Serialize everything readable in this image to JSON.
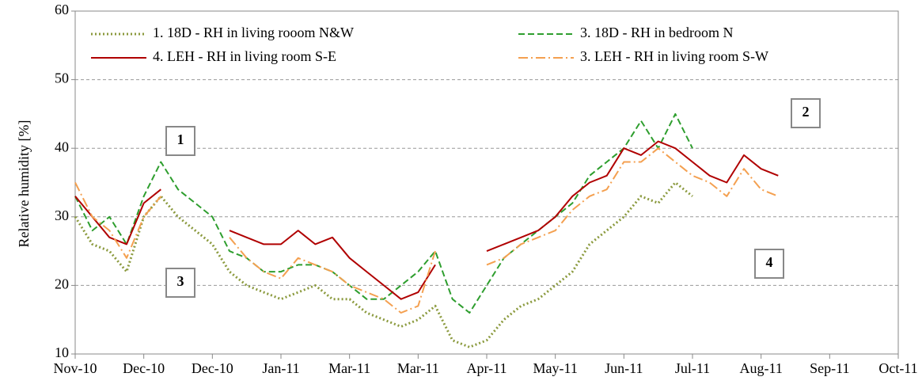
{
  "chart_data": {
    "type": "line",
    "ylabel": "Relative humidity [%]",
    "x": [
      0,
      0.25,
      0.5,
      0.75,
      1,
      1.25,
      1.5,
      1.75,
      2,
      2.25,
      2.5,
      2.75,
      3,
      3.25,
      3.5,
      3.75,
      4,
      4.25,
      4.5,
      4.75,
      5,
      5.25,
      5.5,
      5.75,
      6,
      6.25,
      6.5,
      6.75,
      7,
      7.25,
      7.5,
      7.75,
      8,
      8.25,
      8.5,
      8.75,
      9,
      9.25,
      9.5,
      9.75,
      10,
      10.25
    ],
    "xlim": [
      0,
      12
    ],
    "xticks": [
      {
        "value": 0,
        "label": "Nov-10"
      },
      {
        "value": 1,
        "label": "Dec-10"
      },
      {
        "value": 2,
        "label": "Dec-10"
      },
      {
        "value": 3,
        "label": "Jan-11"
      },
      {
        "value": 4,
        "label": "Mar-11"
      },
      {
        "value": 5,
        "label": "Mar-11"
      },
      {
        "value": 6,
        "label": "Apr-11"
      },
      {
        "value": 7,
        "label": "May-11"
      },
      {
        "value": 8,
        "label": "Jun-11"
      },
      {
        "value": 9,
        "label": "Jul-11"
      },
      {
        "value": 10,
        "label": "Aug-11"
      },
      {
        "value": 11,
        "label": "Sep-11"
      },
      {
        "value": 12,
        "label": "Oct-11"
      }
    ],
    "ylim": [
      10,
      60
    ],
    "yticks": [
      10,
      20,
      30,
      40,
      50,
      60
    ],
    "grid": true,
    "series": [
      {
        "name": "1. 18D - RH in living rooom N&W",
        "color": "#8b9a3e",
        "style": "dotted",
        "values": [
          30,
          26,
          25,
          22,
          30,
          33,
          30,
          28,
          26,
          22,
          20,
          19,
          18,
          19,
          20,
          18,
          18,
          16,
          15,
          14,
          15,
          17,
          12,
          11,
          12,
          15,
          17,
          18,
          20,
          22,
          26,
          28,
          30,
          33,
          32,
          35,
          33,
          null,
          null,
          null,
          null,
          null
        ]
      },
      {
        "name": "3. 18D - RH in bedroom N",
        "color": "#2e9e2e",
        "style": "dashed",
        "values": [
          33,
          28,
          30,
          26,
          33,
          38,
          34,
          32,
          30,
          25,
          24,
          22,
          22,
          23,
          23,
          22,
          20,
          18,
          18,
          20,
          22,
          25,
          18,
          16,
          20,
          24,
          26,
          28,
          30,
          32,
          36,
          38,
          40,
          44,
          40,
          45,
          40,
          null,
          null,
          null,
          null,
          null
        ]
      },
      {
        "name": "4. LEH - RH in living room S-E",
        "color": "#b00000",
        "style": "solid",
        "values": [
          33,
          30,
          27,
          26,
          32,
          34,
          null,
          null,
          null,
          28,
          27,
          26,
          26,
          28,
          26,
          27,
          24,
          22,
          20,
          18,
          19,
          23,
          null,
          null,
          25,
          26,
          27,
          28,
          30,
          33,
          35,
          36,
          40,
          39,
          41,
          40,
          38,
          36,
          35,
          39,
          37,
          36
        ]
      },
      {
        "name": "3. LEH - RH in living room S-W",
        "color": "#f4a050",
        "style": "dashdot",
        "values": [
          35,
          30,
          28,
          24,
          30,
          33,
          null,
          null,
          null,
          27,
          24,
          22,
          21,
          24,
          23,
          22,
          20,
          19,
          18,
          16,
          17,
          25,
          null,
          null,
          23,
          24,
          26,
          27,
          28,
          31,
          33,
          34,
          38,
          38,
          40,
          38,
          36,
          35,
          33,
          37,
          34,
          33
        ]
      }
    ],
    "annotations": [
      "1",
      "2",
      "3",
      "4"
    ]
  }
}
